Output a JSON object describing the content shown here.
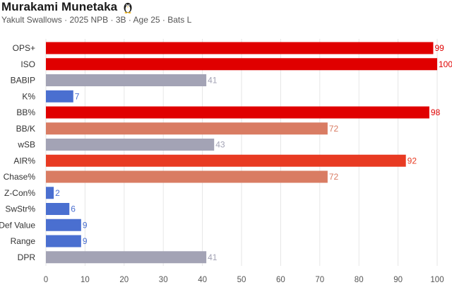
{
  "header": {
    "title": "Murakami Munetaka",
    "subtitle": "Yakult Swallows · 2025 NPB · 3B · Age 25 · Bats L",
    "icon": "penguin-icon"
  },
  "chart_data": {
    "type": "bar",
    "orientation": "horizontal",
    "title": "Murakami Munetaka",
    "xlabel": "",
    "ylabel": "",
    "xlim": [
      0,
      100
    ],
    "xticks": [
      0,
      10,
      20,
      30,
      40,
      50,
      60,
      70,
      80,
      90,
      100
    ],
    "grid": "vertical",
    "categories": [
      "OPS+",
      "ISO",
      "BABIP",
      "K%",
      "BB%",
      "BB/K",
      "wSB",
      "AIR%",
      "Chase%",
      "Z-Con%",
      "SwStr%",
      "Def Value",
      "Range",
      "DPR"
    ],
    "values": [
      99,
      100,
      41,
      7,
      98,
      72,
      43,
      92,
      72,
      2,
      6,
      9,
      9,
      41
    ],
    "colors": [
      "#e00000",
      "#e00000",
      "#a3a3b5",
      "#4a6fd0",
      "#e00000",
      "#d97c63",
      "#a3a3b5",
      "#e83a22",
      "#d97c63",
      "#4a6fd0",
      "#4a6fd0",
      "#4a6fd0",
      "#4a6fd0",
      "#a3a3b5"
    ]
  }
}
